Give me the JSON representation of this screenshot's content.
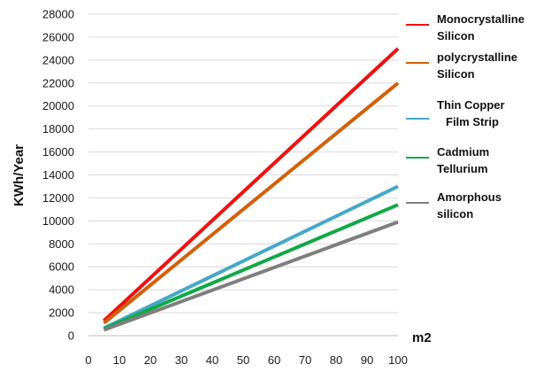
{
  "chart_data": {
    "type": "line",
    "xlabel": "m2",
    "ylabel": "KWh/Year",
    "xlim": [
      0,
      100
    ],
    "ylim": [
      0,
      28000
    ],
    "x_ticks": [
      "0",
      "10",
      "20",
      "30",
      "40",
      "50",
      "60",
      "70",
      "80",
      "90",
      "100"
    ],
    "y_ticks": [
      "0",
      "2000",
      "4000",
      "6000",
      "8000",
      "10000",
      "12000",
      "14000",
      "16000",
      "18000",
      "20000",
      "22000",
      "24000",
      "26000",
      "28000"
    ],
    "grid": "horizontal",
    "legend_position": "right",
    "x": [
      5,
      100
    ],
    "series": [
      {
        "name": "Monocrystalline Silicon",
        "legend_lines": [
          "Monocrystalline",
          "Silicon"
        ],
        "color": "#ee1111",
        "values": [
          1300,
          25000
        ]
      },
      {
        "name": "polycrystalline Silicon",
        "legend_lines": [
          "polycrystalline",
          "Silicon"
        ],
        "color": "#d4600a",
        "values": [
          1100,
          22000
        ]
      },
      {
        "name": "Thin Copper Film Strip",
        "legend_lines": [
          "Thin Copper",
          "Film Strip"
        ],
        "color": "#46a8c8",
        "values": [
          650,
          13000
        ]
      },
      {
        "name": "Cadmium Tellurium",
        "legend_lines": [
          "Cadmium",
          "Tellurium"
        ],
        "color": "#11a847",
        "values": [
          600,
          11400
        ]
      },
      {
        "name": "Amorphous silicon",
        "legend_lines": [
          "Amorphous",
          "silicon"
        ],
        "color": "#7f7f7f",
        "values": [
          500,
          9900
        ]
      }
    ]
  }
}
